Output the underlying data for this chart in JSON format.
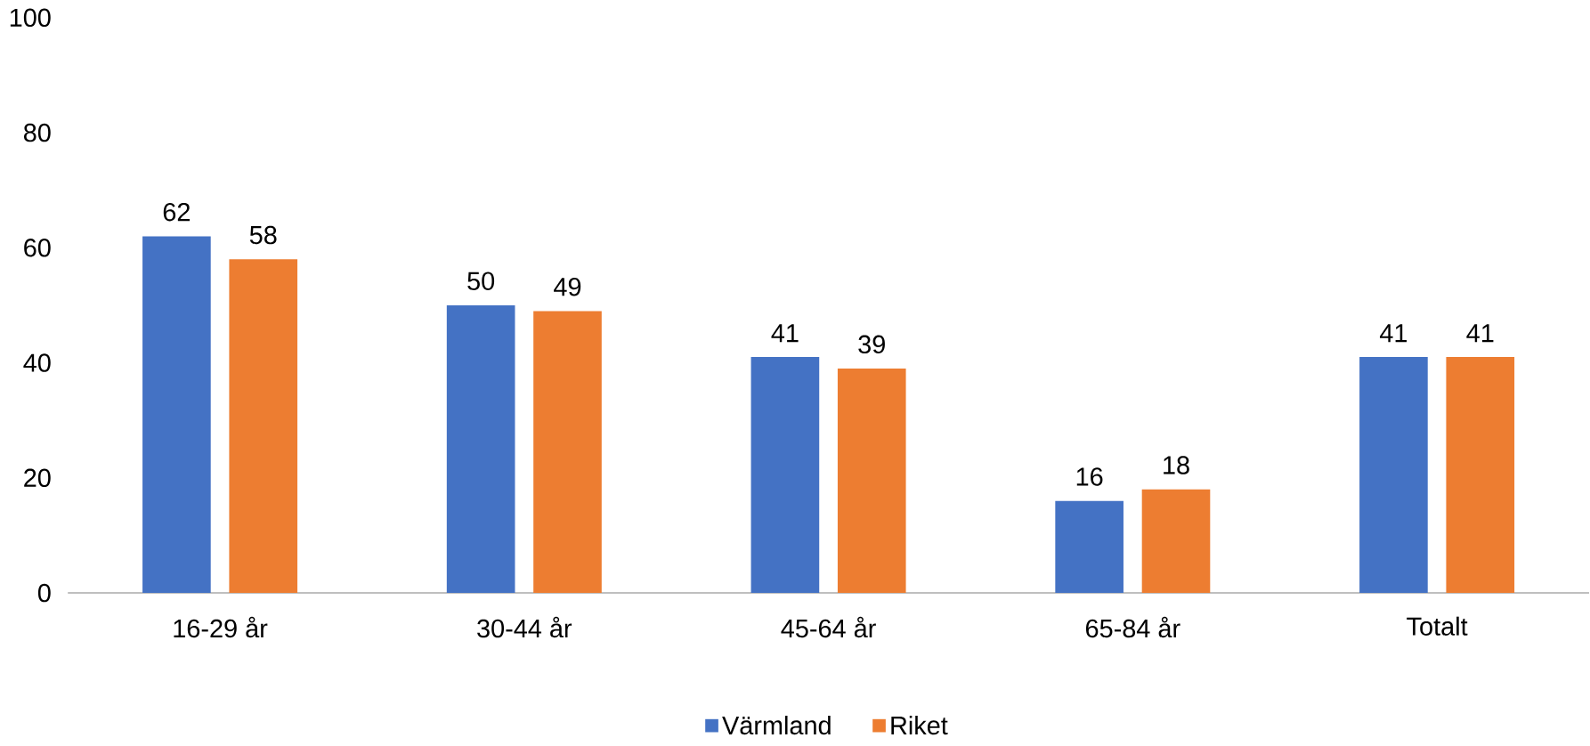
{
  "chart_data": {
    "type": "bar",
    "categories": [
      "16-29 år",
      "30-44 år",
      "45-64 år",
      "65-84 år",
      "Totalt"
    ],
    "series": [
      {
        "name": "Värmland",
        "color": "#4472c4",
        "values": [
          62,
          50,
          41,
          16,
          41
        ]
      },
      {
        "name": "Riket",
        "color": "#ed7d31",
        "values": [
          58,
          49,
          39,
          18,
          41
        ]
      }
    ],
    "ylim": [
      0,
      100
    ],
    "yticks": [
      0,
      20,
      40,
      60,
      80,
      100
    ],
    "legend": "bottom",
    "data_labels": true
  }
}
